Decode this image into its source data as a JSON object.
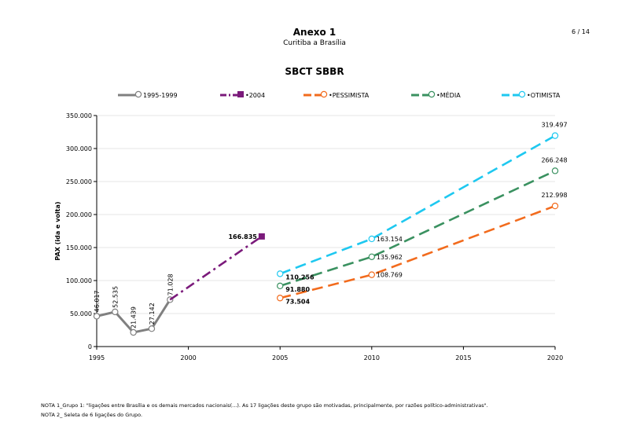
{
  "header": {
    "title": "Anexo 1",
    "subtitle": "Curitiba a Brasília",
    "page": "6 / 14"
  },
  "notes": [
    "NOTA 1_Grupo 1: \"ligações entre Brasília e os demais mercados nacionais(...). As 17 ligações deste grupo são motivadas, principalmente, por razões político-administrativas\".",
    "NOTA 2_ Seleta de 6 ligações do Grupo."
  ],
  "chart_data": {
    "type": "line",
    "title": "SBCT SBBR",
    "ylabel": "PAX (ida e volta)",
    "xlabel": "",
    "xlim": [
      1995,
      2020
    ],
    "ylim": [
      0,
      350000
    ],
    "x_ticks": [
      "1995",
      "2000",
      "2005",
      "2010",
      "2015",
      "2020"
    ],
    "y_ticks": [
      "0",
      "50.000",
      "100.000",
      "150.000",
      "200.000",
      "250.000",
      "300.000",
      "350.000"
    ],
    "legend_position": "top",
    "series": [
      {
        "name": "1995-1999",
        "color": "#808080",
        "style": "solid",
        "marker": "circle",
        "x": [
          1995,
          1996,
          1997,
          1998,
          1999
        ],
        "y": [
          46017,
          52535,
          21439,
          27142,
          71028
        ],
        "labels": [
          "46.017",
          "52.535",
          "21.439",
          "27.142",
          "71.028"
        ]
      },
      {
        "name": "•2004",
        "color": "#7b1a7b",
        "style": "dashdot",
        "marker": "square",
        "x": [
          1999,
          2004
        ],
        "y": [
          71028,
          166835
        ],
        "labels": [
          "",
          "166.835"
        ]
      },
      {
        "name": "•PESSIMISTA",
        "color": "#f26b1d",
        "style": "dash",
        "marker": "circle",
        "x": [
          2005,
          2010,
          2020
        ],
        "y": [
          73504,
          108769,
          212998
        ],
        "labels": [
          "73.504",
          "108.769",
          "212.998"
        ]
      },
      {
        "name": "•MÉDIA",
        "color": "#3a9160",
        "style": "dash",
        "marker": "circle",
        "x": [
          2005,
          2010,
          2020
        ],
        "y": [
          91880,
          135962,
          266248
        ],
        "labels": [
          "91.880",
          "135.962",
          "266.248"
        ]
      },
      {
        "name": "•OTIMISTA",
        "color": "#1ec8f0",
        "style": "dash",
        "marker": "circle",
        "x": [
          2005,
          2010,
          2020
        ],
        "y": [
          110256,
          163154,
          319497
        ],
        "labels": [
          "110.256",
          "163.154",
          "319.497"
        ]
      }
    ]
  }
}
